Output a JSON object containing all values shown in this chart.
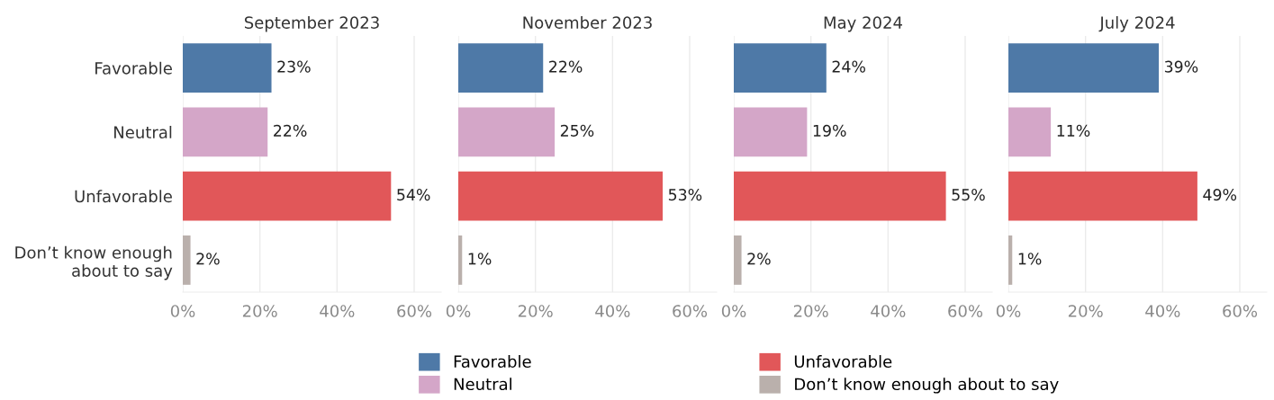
{
  "chart_data": [
    {
      "type": "bar",
      "orientation": "horizontal",
      "title": "September 2023",
      "categories": [
        "Favorable",
        "Neutral",
        "Unfavorable",
        "Don’t know enough\nabout to say"
      ],
      "series": [
        {
          "name": "Favorable",
          "color": "#4e79a7",
          "values": [
            23,
            null,
            null,
            null
          ],
          "value_labels": [
            "23%",
            null,
            null,
            null
          ]
        },
        {
          "name": "Neutral",
          "color": "#d4a6c8",
          "values": [
            null,
            22,
            null,
            null
          ],
          "value_labels": [
            null,
            "22%",
            null,
            null
          ]
        },
        {
          "name": "Unfavorable",
          "color": "#e15759",
          "values": [
            null,
            null,
            54,
            null
          ],
          "value_labels": [
            null,
            null,
            "54%",
            null
          ]
        },
        {
          "name": "Don’t know enough about to say",
          "color": "#bab0ac",
          "values": [
            null,
            null,
            null,
            2
          ],
          "value_labels": [
            null,
            null,
            null,
            "2%"
          ]
        }
      ],
      "xlim": [
        0,
        67
      ],
      "xticks": [
        {
          "value": 0,
          "label": "0%"
        },
        {
          "value": 20,
          "label": "20%"
        },
        {
          "value": 40,
          "label": "40%"
        },
        {
          "value": 60,
          "label": "60%"
        }
      ],
      "grid": "x",
      "legend": "bottom"
    },
    {
      "type": "bar",
      "orientation": "horizontal",
      "title": "November 2023",
      "categories": [
        null,
        null,
        null,
        null
      ],
      "series": [
        {
          "color": "#4e79a7",
          "values": [
            22,
            null,
            null,
            null
          ],
          "value_labels": [
            "22%",
            null,
            null,
            null
          ]
        },
        {
          "color": "#d4a6c8",
          "values": [
            null,
            25,
            null,
            null
          ],
          "value_labels": [
            null,
            "25%",
            null,
            null
          ]
        },
        {
          "color": "#e15759",
          "values": [
            null,
            null,
            53,
            null
          ],
          "value_labels": [
            null,
            null,
            "53%",
            null
          ]
        },
        {
          "color": "#bab0ac",
          "values": [
            null,
            null,
            null,
            1
          ],
          "value_labels": [
            null,
            null,
            null,
            "1%"
          ]
        }
      ],
      "xlim": [
        0,
        67
      ],
      "xticks": [
        {
          "value": 0,
          "label": "0%"
        },
        {
          "value": 20,
          "label": "20%"
        },
        {
          "value": 40,
          "label": "40%"
        },
        {
          "value": 60,
          "label": "60%"
        }
      ],
      "grid": "x",
      "tick_labels": "x"
    },
    {
      "type": "bar",
      "orientation": "horizontal",
      "title": "May 2024",
      "categories": [
        null,
        null,
        null,
        null
      ],
      "series": [
        {
          "color": "#4e79a7",
          "values": [
            24,
            null,
            null,
            null
          ],
          "value_labels": [
            "24%",
            null,
            null,
            null
          ]
        },
        {
          "color": "#d4a6c8",
          "values": [
            null,
            19,
            null,
            null
          ],
          "value_labels": [
            null,
            "19%",
            null,
            null
          ]
        },
        {
          "color": "#e15759",
          "values": [
            null,
            null,
            55,
            null
          ],
          "value_labels": [
            null,
            null,
            "55%",
            null
          ]
        },
        {
          "color": "#bab0ac",
          "values": [
            null,
            null,
            null,
            2
          ],
          "value_labels": [
            null,
            null,
            null,
            "2%"
          ]
        }
      ],
      "xlim": [
        0,
        67
      ],
      "xticks": [
        {
          "value": 0,
          "label": "0%"
        },
        {
          "value": 20,
          "label": "20%"
        },
        {
          "value": 40,
          "label": "40%"
        },
        {
          "value": 60,
          "label": "60%"
        }
      ],
      "grid": "x",
      "tick_labels": "x"
    },
    {
      "type": "bar",
      "orientation": "horizontal",
      "title": "July 2024",
      "categories": [
        null,
        null,
        null,
        null
      ],
      "series": [
        {
          "color": "#4e79a7",
          "values": [
            39,
            null,
            null,
            null
          ],
          "value_labels": [
            "39%",
            null,
            null,
            null
          ]
        },
        {
          "color": "#d4a6c8",
          "values": [
            null,
            11,
            null,
            null
          ],
          "value_labels": [
            null,
            "11%",
            null,
            null
          ]
        },
        {
          "color": "#e15759",
          "values": [
            null,
            null,
            49,
            null
          ],
          "value_labels": [
            null,
            null,
            "49%",
            null
          ]
        },
        {
          "color": "#bab0ac",
          "values": [
            null,
            null,
            null,
            1
          ],
          "value_labels": [
            null,
            null,
            null,
            "1%"
          ]
        }
      ],
      "xlim": [
        0,
        67
      ],
      "xticks": [
        {
          "value": 0,
          "label": "0%"
        },
        {
          "value": 20,
          "label": "20%"
        },
        {
          "value": 40,
          "label": "40%"
        },
        {
          "value": 60,
          "label": "60%"
        }
      ],
      "grid": "x",
      "tick_labels": "x"
    }
  ]
}
